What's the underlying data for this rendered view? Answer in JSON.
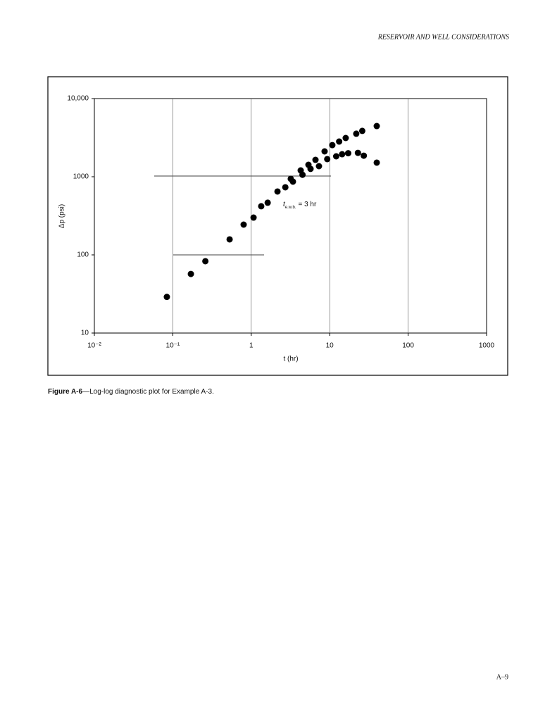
{
  "header": "RESERVOIR AND WELL CONSIDERATIONS",
  "caption": {
    "label": "Figure A-6",
    "text": "—Log-log diagnostic plot for Example A-3."
  },
  "page_number": "A–9",
  "chart_data": {
    "type": "scatter",
    "xlabel": "t (hr)",
    "ylabel": "Δp (psi)",
    "xscale": "log",
    "yscale": "log",
    "xlim": [
      0.01,
      1000
    ],
    "ylim": [
      10,
      10000
    ],
    "xticks": [
      {
        "value": 0.01,
        "label": "10⁻²"
      },
      {
        "value": 0.1,
        "label": "10⁻¹"
      },
      1,
      10,
      100,
      1000
    ],
    "yticks": [
      10,
      100,
      1000,
      {
        "value": 10000,
        "label": "10,000"
      }
    ],
    "grid": true,
    "color": "#000000",
    "annotation": {
      "symbol": "t",
      "subscript": "e.w.b.",
      "text": "= 3 hr"
    },
    "x": [
      0.084,
      0.17,
      0.26,
      0.53,
      0.8,
      1.07,
      1.34,
      1.62,
      2.16,
      2.72,
      3.19,
      3.4,
      4.27,
      4.5,
      5.36,
      5.7,
      6.59,
      7.3,
      8.61,
      9.3,
      10.8,
      12.1,
      13.2,
      14.4,
      16.0,
      17.2,
      21.8,
      22.9,
      26.0,
      27.2,
      39.8,
      39.8
    ],
    "values": [
      29,
      57,
      83,
      158,
      244,
      300,
      419,
      465,
      647,
      733,
      940,
      865,
      1205,
      1060,
      1422,
      1260,
      1645,
      1365,
      2110,
      1680,
      2540,
      1825,
      2820,
      1940,
      3130,
      2000,
      3550,
      2020,
      3860,
      1860,
      4450,
      1515
    ]
  }
}
